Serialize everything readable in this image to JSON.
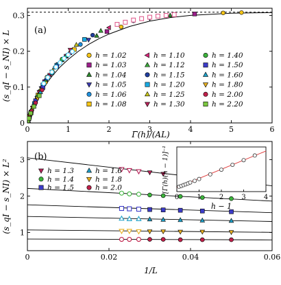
{
  "chart_data": [
    {
      "type": "scatter",
      "panel_label": "(a)",
      "xlabel": "Γ̄(h)/(AL)",
      "ylabel": "(s_qI − s_NI) × L",
      "xlim": [
        0,
        6
      ],
      "ylim": [
        0,
        0.32
      ],
      "xticks": [
        "0",
        "1",
        "2",
        "3",
        "4",
        "5",
        "6"
      ],
      "yticks": [
        "0",
        "0.1",
        "0.2",
        "0.3"
      ],
      "asymptote": 0.309,
      "legend_position": "center-right",
      "legend_columns": 3,
      "series": [
        {
          "name": "h = 1.02",
          "color": "#f5c518",
          "marker": "circle",
          "x": [
            0.1,
            0.48,
            1.05,
            2.3,
            4.8,
            5.25
          ],
          "y": [
            0.032,
            0.128,
            0.196,
            0.268,
            0.307,
            0.308
          ]
        },
        {
          "name": "h = 1.03",
          "color": "#9b1f8a",
          "marker": "square",
          "x": [
            0.09,
            0.42,
            0.95,
            1.95,
            4.1
          ],
          "y": [
            0.029,
            0.115,
            0.186,
            0.255,
            0.304
          ]
        },
        {
          "name": "h = 1.04",
          "color": "#2e8b2e",
          "marker": "triangle-up",
          "x": [
            0.08,
            0.38,
            0.85,
            1.7,
            3.5
          ],
          "y": [
            0.026,
            0.106,
            0.175,
            0.243,
            0.3
          ]
        },
        {
          "name": "h = 1.05",
          "color": "#3b3bb3",
          "marker": "triangle-down",
          "x": [
            0.07,
            0.34,
            0.76,
            1.5,
            3.0
          ],
          "y": [
            0.023,
            0.097,
            0.164,
            0.232,
            0.292
          ]
        },
        {
          "name": "h = 1.06",
          "color": "#1f8fdc",
          "marker": "circle",
          "x": [
            0.06,
            0.3,
            0.68,
            1.3,
            2.6
          ],
          "y": [
            0.02,
            0.088,
            0.155,
            0.219,
            0.285
          ]
        },
        {
          "name": "h = 1.08",
          "color": "#f5c518",
          "marker": "square",
          "x": [
            0.05,
            0.26,
            0.6,
            1.15,
            2.2
          ],
          "y": [
            0.018,
            0.078,
            0.142,
            0.205,
            0.275
          ]
        },
        {
          "name": "h = 1.10",
          "color": "#d7267a",
          "marker": "triangle-left",
          "x": [
            0.05,
            0.24,
            0.55,
            1.05,
            2.0
          ],
          "y": [
            0.017,
            0.073,
            0.135,
            0.196,
            0.266
          ]
        },
        {
          "name": "h = 1.12",
          "color": "#3aa63a",
          "marker": "triangle-up",
          "x": [
            0.04,
            0.22,
            0.5,
            0.95,
            1.8
          ],
          "y": [
            0.015,
            0.068,
            0.128,
            0.187,
            0.257
          ]
        },
        {
          "name": "h = 1.15",
          "color": "#1f3e9e",
          "marker": "circle",
          "x": [
            0.04,
            0.2,
            0.45,
            0.85,
            1.6
          ],
          "y": [
            0.014,
            0.062,
            0.119,
            0.177,
            0.245
          ]
        },
        {
          "name": "h = 1.20",
          "color": "#18a8e0",
          "marker": "square",
          "x": [
            0.03,
            0.17,
            0.38,
            0.72,
            1.4
          ],
          "y": [
            0.012,
            0.054,
            0.106,
            0.161,
            0.233
          ]
        },
        {
          "name": "h = 1.25",
          "color": "#c9c81a",
          "marker": "triangle-up",
          "x": [
            0.03,
            0.15,
            0.33,
            0.62,
            1.2
          ],
          "y": [
            0.011,
            0.048,
            0.095,
            0.146,
            0.218
          ]
        },
        {
          "name": "h = 1.30",
          "color": "#b8245a",
          "marker": "triangle-down",
          "x": [
            0.03,
            0.13,
            0.29,
            0.55,
            1.05
          ],
          "y": [
            0.01,
            0.043,
            0.086,
            0.134,
            0.204
          ]
        },
        {
          "name": "h = 1.40",
          "color": "#3cb43c",
          "marker": "circle",
          "x": [
            0.02,
            0.11,
            0.24,
            0.45,
            0.85
          ],
          "y": [
            0.008,
            0.036,
            0.073,
            0.114,
            0.178
          ]
        },
        {
          "name": "h = 1.50",
          "color": "#3c3cc8",
          "marker": "square",
          "x": [
            0.02,
            0.09,
            0.2,
            0.38,
            0.72
          ],
          "y": [
            0.007,
            0.03,
            0.062,
            0.099,
            0.158
          ]
        },
        {
          "name": "h = 1.60",
          "color": "#1fa0c8",
          "marker": "triangle-up",
          "x": [
            0.02,
            0.08,
            0.17,
            0.32,
            0.6
          ],
          "y": [
            0.006,
            0.026,
            0.053,
            0.086,
            0.139
          ]
        },
        {
          "name": "h = 1.80",
          "color": "#e8b020",
          "marker": "triangle-down",
          "x": [
            0.01,
            0.06,
            0.13,
            0.25,
            0.45
          ],
          "y": [
            0.004,
            0.02,
            0.041,
            0.069,
            0.111
          ]
        },
        {
          "name": "h = 2.00",
          "color": "#c0204a",
          "marker": "circle",
          "x": [
            0.01,
            0.05,
            0.1,
            0.2,
            0.36
          ],
          "y": [
            0.004,
            0.016,
            0.033,
            0.056,
            0.092
          ]
        },
        {
          "name": "h = 2.20",
          "color": "#7cc840",
          "marker": "square",
          "x": [
            0.01,
            0.04,
            0.08,
            0.16,
            0.29
          ],
          "y": [
            0.003,
            0.013,
            0.027,
            0.046,
            0.076
          ]
        },
        {
          "name": "",
          "color": "#e06090",
          "marker": "square-open",
          "x": [
            2.2,
            2.4,
            2.6,
            2.8,
            3.0,
            3.2,
            3.4,
            3.6
          ],
          "y": [
            0.275,
            0.281,
            0.287,
            0.291,
            0.295,
            0.298,
            0.3,
            0.302
          ]
        },
        {
          "name": "",
          "color": "#40c8f0",
          "marker": "circle-open",
          "x": [
            0.4,
            0.5,
            0.6,
            0.7,
            0.8,
            0.9,
            1.0,
            1.1
          ],
          "y": [
            0.11,
            0.127,
            0.142,
            0.156,
            0.168,
            0.18,
            0.19,
            0.199
          ]
        }
      ],
      "curve": {
        "x": [
          0,
          0.05,
          0.1,
          0.2,
          0.3,
          0.4,
          0.5,
          0.6,
          0.8,
          1.0,
          1.25,
          1.5,
          1.75,
          2.0,
          2.5,
          3.0,
          3.5,
          4.0,
          5.0,
          6.0
        ],
        "y": [
          0.0,
          0.018,
          0.032,
          0.057,
          0.079,
          0.098,
          0.115,
          0.13,
          0.156,
          0.177,
          0.2,
          0.219,
          0.235,
          0.248,
          0.269,
          0.284,
          0.294,
          0.3,
          0.306,
          0.308
        ]
      }
    },
    {
      "type": "scatter",
      "panel_label": "(b)",
      "xlabel": "1/L",
      "ylabel": "(s_qI − s_NI) × L²",
      "xlim": [
        0,
        0.06
      ],
      "ylim": [
        0.5,
        3.5
      ],
      "xticks": [
        "0",
        "0.02",
        "0.04",
        "0.06"
      ],
      "yticks": [
        "1",
        "2",
        "3"
      ],
      "legend_position": "top-left",
      "legend_columns": 2,
      "series": [
        {
          "name": "h = 1.3",
          "color": "#b8245a",
          "marker": "triangle-down",
          "x": [
            0.0231,
            0.025,
            0.0273,
            0.03,
            0.0333,
            0.0375,
            0.0429,
            0.05
          ],
          "y": [
            2.74,
            2.71,
            2.68,
            2.65,
            2.61,
            2.57,
            2.52,
            2.45
          ],
          "fit": [
            3.05,
            -12.8
          ],
          "open_points": 3
        },
        {
          "name": "h = 1.4",
          "color": "#3cb43c",
          "marker": "circle",
          "x": [
            0.0231,
            0.025,
            0.0273,
            0.03,
            0.0333,
            0.0375,
            0.0429,
            0.05
          ],
          "y": [
            2.08,
            2.06,
            2.05,
            2.03,
            2.01,
            1.99,
            1.96,
            1.93
          ],
          "fit": [
            2.21,
            -5.8
          ],
          "open_points": 3
        },
        {
          "name": "h = 1.5",
          "color": "#3c3cc8",
          "marker": "square",
          "x": [
            0.0231,
            0.025,
            0.0273,
            0.03,
            0.0333,
            0.0375,
            0.0429,
            0.05
          ],
          "y": [
            1.66,
            1.65,
            1.64,
            1.63,
            1.62,
            1.61,
            1.59,
            1.57
          ],
          "fit": [
            1.76,
            -3.6
          ],
          "open_points": 3
        },
        {
          "name": "h = 1.6",
          "color": "#1fa0c8",
          "marker": "triangle-up",
          "x": [
            0.0231,
            0.025,
            0.0273,
            0.03,
            0.0333,
            0.0375,
            0.0429,
            0.05
          ],
          "y": [
            1.38,
            1.37,
            1.37,
            1.36,
            1.35,
            1.34,
            1.33,
            1.32
          ],
          "fit": [
            1.44,
            -2.3
          ],
          "open_points": 3
        },
        {
          "name": "h = 1.8",
          "color": "#e8b020",
          "marker": "triangle-down",
          "x": [
            0.0231,
            0.025,
            0.0273,
            0.03,
            0.0333,
            0.0375,
            0.0429,
            0.05
          ],
          "y": [
            1.04,
            1.04,
            1.03,
            1.03,
            1.03,
            1.02,
            1.02,
            1.01
          ],
          "fit": [
            1.07,
            -1.1
          ],
          "open_points": 3
        },
        {
          "name": "h = 2.0",
          "color": "#c0204a",
          "marker": "circle",
          "x": [
            0.0231,
            0.025,
            0.0273,
            0.03,
            0.0333,
            0.0375,
            0.0429,
            0.05
          ],
          "y": [
            0.81,
            0.81,
            0.81,
            0.81,
            0.81,
            0.8,
            0.8,
            0.8
          ],
          "fit": [
            0.82,
            -0.4
          ],
          "open_points": 3
        }
      ],
      "inset": {
        "xlabel": "h − 1",
        "ylabel": "[Γ̄(h)(h − 1)]⁻¹",
        "xlim": [
          0,
          4
        ],
        "xticks": [
          "0",
          "1",
          "2",
          "3",
          "4"
        ],
        "x": [
          0.1,
          0.2,
          0.3,
          0.4,
          0.5,
          0.6,
          0.8,
          1.0,
          1.5,
          2.0,
          2.5,
          3.0,
          3.5
        ],
        "y": [
          1.04,
          1.08,
          1.12,
          1.16,
          1.2,
          1.25,
          1.33,
          1.42,
          1.65,
          1.88,
          2.12,
          2.35,
          2.58
        ],
        "fit": {
          "x": [
            0,
            4
          ],
          "y": [
            1.0,
            2.8
          ]
        }
      }
    }
  ]
}
